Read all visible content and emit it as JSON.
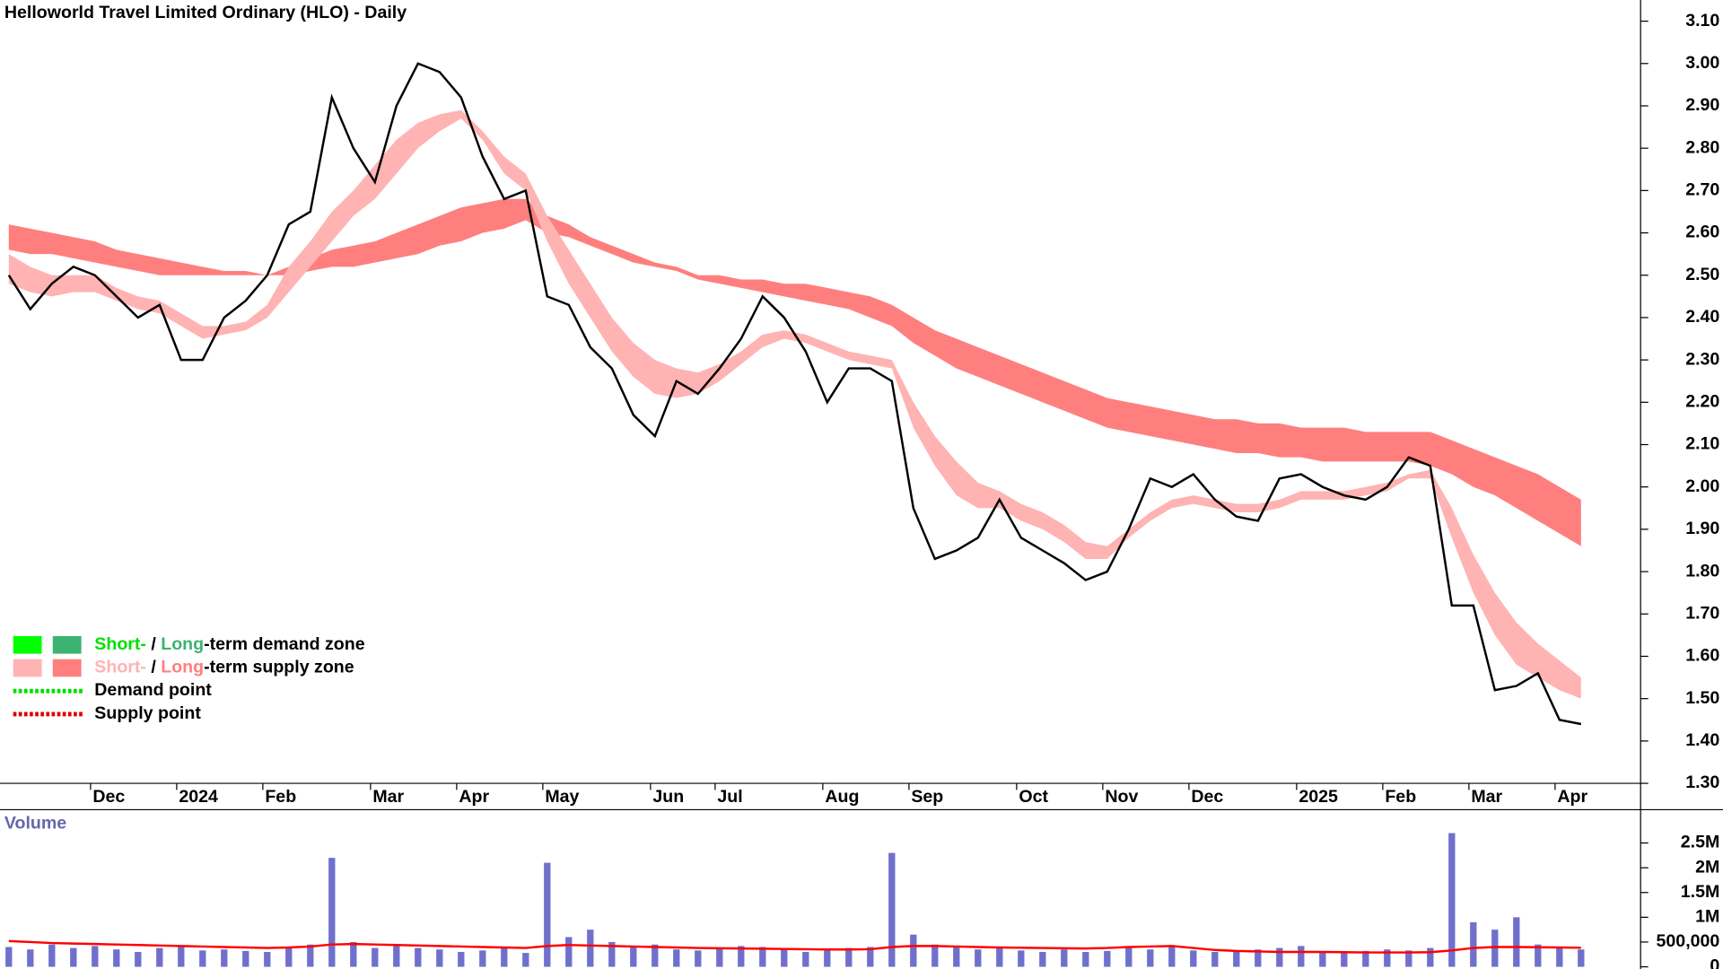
{
  "chart_data": [
    {
      "type": "line",
      "title": "Helloworld Travel Limited Ordinary (HLO) - Daily",
      "categories": [
        null,
        null,
        null,
        null,
        "Dec",
        null,
        null,
        null,
        "2024",
        null,
        null,
        null,
        "Feb",
        null,
        null,
        null,
        null,
        "Mar",
        null,
        null,
        null,
        "Apr",
        null,
        null,
        null,
        "May",
        null,
        null,
        null,
        null,
        "Jun",
        null,
        null,
        "Jul",
        null,
        null,
        null,
        null,
        "Aug",
        null,
        null,
        null,
        "Sep",
        null,
        null,
        null,
        null,
        "Oct",
        null,
        null,
        null,
        "Nov",
        null,
        null,
        null,
        "Dec",
        null,
        null,
        null,
        null,
        "2025",
        null,
        null,
        null,
        "Feb",
        null,
        null,
        null,
        "Mar",
        null,
        null,
        null,
        "Apr",
        null
      ],
      "values": [
        2.5,
        2.42,
        2.48,
        2.52,
        2.5,
        2.45,
        2.4,
        2.43,
        2.3,
        2.3,
        2.4,
        2.44,
        2.5,
        2.62,
        2.65,
        2.92,
        2.8,
        2.72,
        2.9,
        3.0,
        2.98,
        2.92,
        2.78,
        2.68,
        2.7,
        2.45,
        2.43,
        2.33,
        2.28,
        2.17,
        2.12,
        2.25,
        2.22,
        2.28,
        2.35,
        2.45,
        2.4,
        2.32,
        2.2,
        2.28,
        2.28,
        2.25,
        1.95,
        1.83,
        1.85,
        1.88,
        1.97,
        1.88,
        1.85,
        1.82,
        1.78,
        1.8,
        1.9,
        2.02,
        2.0,
        2.03,
        1.97,
        1.93,
        1.92,
        2.02,
        2.03,
        2.0,
        1.98,
        1.97,
        2.0,
        2.07,
        2.05,
        1.72,
        1.72,
        1.52,
        1.53,
        1.56,
        1.45,
        1.44
      ],
      "color": "#000000",
      "bands": [
        {
          "color": "#ff7f7f",
          "upper": [
            2.62,
            2.61,
            2.6,
            2.59,
            2.58,
            2.56,
            2.55,
            2.54,
            2.53,
            2.52,
            2.51,
            2.51,
            2.5,
            2.52,
            2.54,
            2.56,
            2.57,
            2.58,
            2.6,
            2.62,
            2.64,
            2.66,
            2.67,
            2.68,
            2.68,
            2.64,
            2.62,
            2.59,
            2.57,
            2.55,
            2.53,
            2.52,
            2.5,
            2.5,
            2.49,
            2.49,
            2.48,
            2.48,
            2.47,
            2.46,
            2.45,
            2.43,
            2.4,
            2.37,
            2.35,
            2.33,
            2.31,
            2.29,
            2.27,
            2.25,
            2.23,
            2.21,
            2.2,
            2.19,
            2.18,
            2.17,
            2.16,
            2.16,
            2.15,
            2.15,
            2.14,
            2.14,
            2.14,
            2.13,
            2.13,
            2.13,
            2.13,
            2.11,
            2.09,
            2.07,
            2.05,
            2.03,
            2.0,
            1.97
          ],
          "lower": [
            2.56,
            2.55,
            2.55,
            2.54,
            2.53,
            2.52,
            2.51,
            2.5,
            2.5,
            2.5,
            2.5,
            2.5,
            2.5,
            2.5,
            2.51,
            2.52,
            2.52,
            2.53,
            2.54,
            2.55,
            2.57,
            2.58,
            2.6,
            2.61,
            2.63,
            2.6,
            2.59,
            2.57,
            2.55,
            2.53,
            2.52,
            2.51,
            2.49,
            2.48,
            2.47,
            2.46,
            2.45,
            2.44,
            2.43,
            2.42,
            2.4,
            2.38,
            2.34,
            2.31,
            2.28,
            2.26,
            2.24,
            2.22,
            2.2,
            2.18,
            2.16,
            2.14,
            2.13,
            2.12,
            2.11,
            2.1,
            2.09,
            2.08,
            2.08,
            2.07,
            2.07,
            2.06,
            2.06,
            2.06,
            2.06,
            2.06,
            2.05,
            2.03,
            2.0,
            1.98,
            1.95,
            1.92,
            1.89,
            1.86
          ]
        },
        {
          "color": "#ffb3b3",
          "upper": [
            2.55,
            2.52,
            2.5,
            2.5,
            2.5,
            2.47,
            2.45,
            2.44,
            2.41,
            2.38,
            2.38,
            2.39,
            2.43,
            2.52,
            2.58,
            2.65,
            2.7,
            2.76,
            2.82,
            2.86,
            2.88,
            2.89,
            2.84,
            2.78,
            2.74,
            2.64,
            2.56,
            2.48,
            2.4,
            2.34,
            2.3,
            2.28,
            2.27,
            2.29,
            2.32,
            2.36,
            2.37,
            2.36,
            2.34,
            2.32,
            2.31,
            2.3,
            2.2,
            2.12,
            2.06,
            2.01,
            1.99,
            1.96,
            1.94,
            1.91,
            1.87,
            1.86,
            1.9,
            1.94,
            1.97,
            1.98,
            1.97,
            1.96,
            1.96,
            1.97,
            1.99,
            1.99,
            1.99,
            2.0,
            2.01,
            2.03,
            2.04,
            1.95,
            1.84,
            1.75,
            1.68,
            1.63,
            1.59,
            1.55
          ],
          "lower": [
            2.48,
            2.46,
            2.45,
            2.46,
            2.46,
            2.44,
            2.42,
            2.41,
            2.38,
            2.35,
            2.36,
            2.37,
            2.4,
            2.46,
            2.52,
            2.58,
            2.64,
            2.68,
            2.74,
            2.8,
            2.84,
            2.87,
            2.82,
            2.74,
            2.7,
            2.58,
            2.48,
            2.4,
            2.32,
            2.26,
            2.22,
            2.21,
            2.22,
            2.25,
            2.29,
            2.33,
            2.35,
            2.34,
            2.32,
            2.3,
            2.29,
            2.28,
            2.14,
            2.05,
            1.98,
            1.95,
            1.95,
            1.92,
            1.9,
            1.87,
            1.83,
            1.83,
            1.88,
            1.92,
            1.95,
            1.96,
            1.95,
            1.94,
            1.94,
            1.95,
            1.97,
            1.97,
            1.97,
            1.98,
            1.99,
            2.02,
            2.02,
            1.88,
            1.75,
            1.65,
            1.58,
            1.55,
            1.52,
            1.5
          ]
        }
      ],
      "ylim": [
        1.3,
        3.15
      ],
      "yticks": [
        {
          "value": 1.3,
          "label": "1.30"
        },
        {
          "value": 1.4,
          "label": "1.40"
        },
        {
          "value": 1.5,
          "label": "1.50"
        },
        {
          "value": 1.6,
          "label": "1.60"
        },
        {
          "value": 1.7,
          "label": "1.70"
        },
        {
          "value": 1.8,
          "label": "1.80"
        },
        {
          "value": 1.9,
          "label": "1.90"
        },
        {
          "value": 2.0,
          "label": "2.00"
        },
        {
          "value": 2.1,
          "label": "2.10"
        },
        {
          "value": 2.2,
          "label": "2.20"
        },
        {
          "value": 2.3,
          "label": "2.30"
        },
        {
          "value": 2.4,
          "label": "2.40"
        },
        {
          "value": 2.5,
          "label": "2.50"
        },
        {
          "value": 2.6,
          "label": "2.60"
        },
        {
          "value": 2.7,
          "label": "2.70"
        },
        {
          "value": 2.8,
          "label": "2.80"
        },
        {
          "value": 2.9,
          "label": "2.90"
        },
        {
          "value": 3.0,
          "label": "3.00"
        },
        {
          "value": 3.1,
          "label": "3.10"
        }
      ],
      "legend": {
        "corner": "bottom-left",
        "items": [
          {
            "swatches": [
              "#00ff00",
              "#3cb371"
            ],
            "parts": [
              {
                "text": "Short-",
                "color": "#00e000"
              },
              {
                "text": " / "
              },
              {
                "text": "Long",
                "color": "#3cb371"
              },
              {
                "text": "-term demand zone"
              }
            ]
          },
          {
            "swatches": [
              "#ffb3b3",
              "#ff7f7f"
            ],
            "parts": [
              {
                "text": "Short-",
                "color": "#ffb3b3"
              },
              {
                "text": " / "
              },
              {
                "text": "Long",
                "color": "#ff7f7f"
              },
              {
                "text": "-term supply zone"
              }
            ]
          },
          {
            "dotted": "#00dd00",
            "parts": [
              {
                "text": "Demand point"
              }
            ]
          },
          {
            "dotted": "#dd0000",
            "parts": [
              {
                "text": "Supply point"
              }
            ]
          }
        ]
      }
    },
    {
      "type": "bar",
      "title": "Volume",
      "values": [
        400000,
        350000,
        450000,
        380000,
        420000,
        350000,
        300000,
        380000,
        400000,
        330000,
        350000,
        320000,
        300000,
        380000,
        450000,
        2200000,
        500000,
        380000,
        420000,
        380000,
        350000,
        300000,
        330000,
        400000,
        280000,
        2100000,
        600000,
        750000,
        500000,
        400000,
        450000,
        350000,
        330000,
        380000,
        420000,
        400000,
        350000,
        300000,
        330000,
        380000,
        400000,
        2300000,
        650000,
        450000,
        400000,
        350000,
        380000,
        330000,
        300000,
        350000,
        300000,
        320000,
        380000,
        350000,
        400000,
        330000,
        300000,
        320000,
        350000,
        380000,
        420000,
        300000,
        280000,
        320000,
        350000,
        330000,
        380000,
        2700000,
        900000,
        750000,
        1000000,
        450000,
        380000,
        350000
      ],
      "color": "#7070cc",
      "average": {
        "color": "#ff0000",
        "values": [
          520000,
          500000,
          480000,
          470000,
          460000,
          450000,
          440000,
          430000,
          420000,
          410000,
          400000,
          390000,
          380000,
          390000,
          410000,
          450000,
          460000,
          450000,
          440000,
          430000,
          420000,
          410000,
          400000,
          390000,
          380000,
          420000,
          440000,
          430000,
          420000,
          410000,
          400000,
          390000,
          380000,
          375000,
          370000,
          365000,
          360000,
          355000,
          350000,
          350000,
          355000,
          400000,
          420000,
          420000,
          410000,
          400000,
          390000,
          385000,
          380000,
          375000,
          370000,
          380000,
          400000,
          410000,
          420000,
          380000,
          340000,
          320000,
          310000,
          300000,
          300000,
          300000,
          295000,
          290000,
          290000,
          290000,
          295000,
          330000,
          380000,
          400000,
          400000,
          395000,
          390000,
          385000
        ]
      },
      "ylim": [
        0,
        3150000
      ],
      "yticks": [
        0,
        {
          "value": 500000,
          "label": "500,000"
        },
        {
          "value": 1000000,
          "label": "1M"
        },
        {
          "value": 1500000,
          "label": "1.5M"
        },
        {
          "value": 2000000,
          "label": "2M"
        },
        {
          "value": 2500000,
          "label": "2.5M"
        }
      ]
    }
  ]
}
